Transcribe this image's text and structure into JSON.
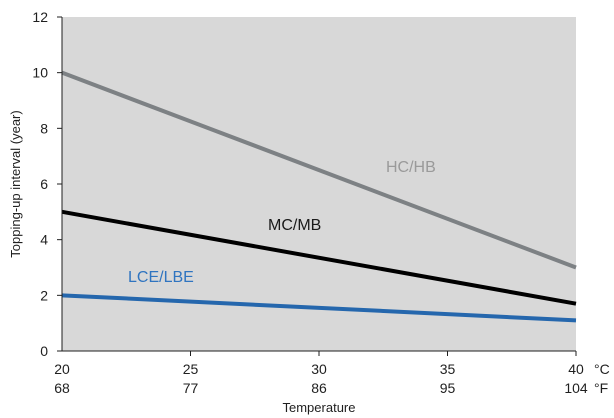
{
  "chart_data": {
    "type": "line",
    "xlabel": "Temperature",
    "ylabel": "Topping-up interval (year)",
    "xlim": [
      20,
      40
    ],
    "ylim": [
      0,
      12
    ],
    "x_ticks": [
      20,
      25,
      30,
      35,
      40
    ],
    "x_tick_labels_celsius": [
      "20",
      "25",
      "30",
      "35",
      "40"
    ],
    "x_tick_labels_fahrenheit": [
      "68",
      "77",
      "86",
      "95",
      "104"
    ],
    "x_unit_celsius": "°C",
    "x_unit_fahrenheit": "°F",
    "y_ticks": [
      0,
      2,
      4,
      6,
      8,
      10,
      12
    ],
    "y_tick_labels": [
      "0",
      "2",
      "4",
      "6",
      "8",
      "10",
      "12"
    ],
    "grid": false,
    "series": [
      {
        "name": "HC/HB",
        "x": [
          20,
          40
        ],
        "y": [
          10,
          3
        ],
        "color": "#7d8184",
        "label_color": "#9a9a9a"
      },
      {
        "name": "MC/MB",
        "x": [
          20,
          40
        ],
        "y": [
          5,
          1.7
        ],
        "color": "#000000",
        "label_color": "#1a1a1a"
      },
      {
        "name": "LCE/LBE",
        "x": [
          20,
          40
        ],
        "y": [
          2,
          1.1
        ],
        "color": "#2567ad",
        "label_color": "#2f74c0"
      }
    ],
    "colors": {
      "plot_background": "#d8d8d8",
      "page_background": "#ffffff",
      "axis": "#1f1f1f"
    }
  }
}
